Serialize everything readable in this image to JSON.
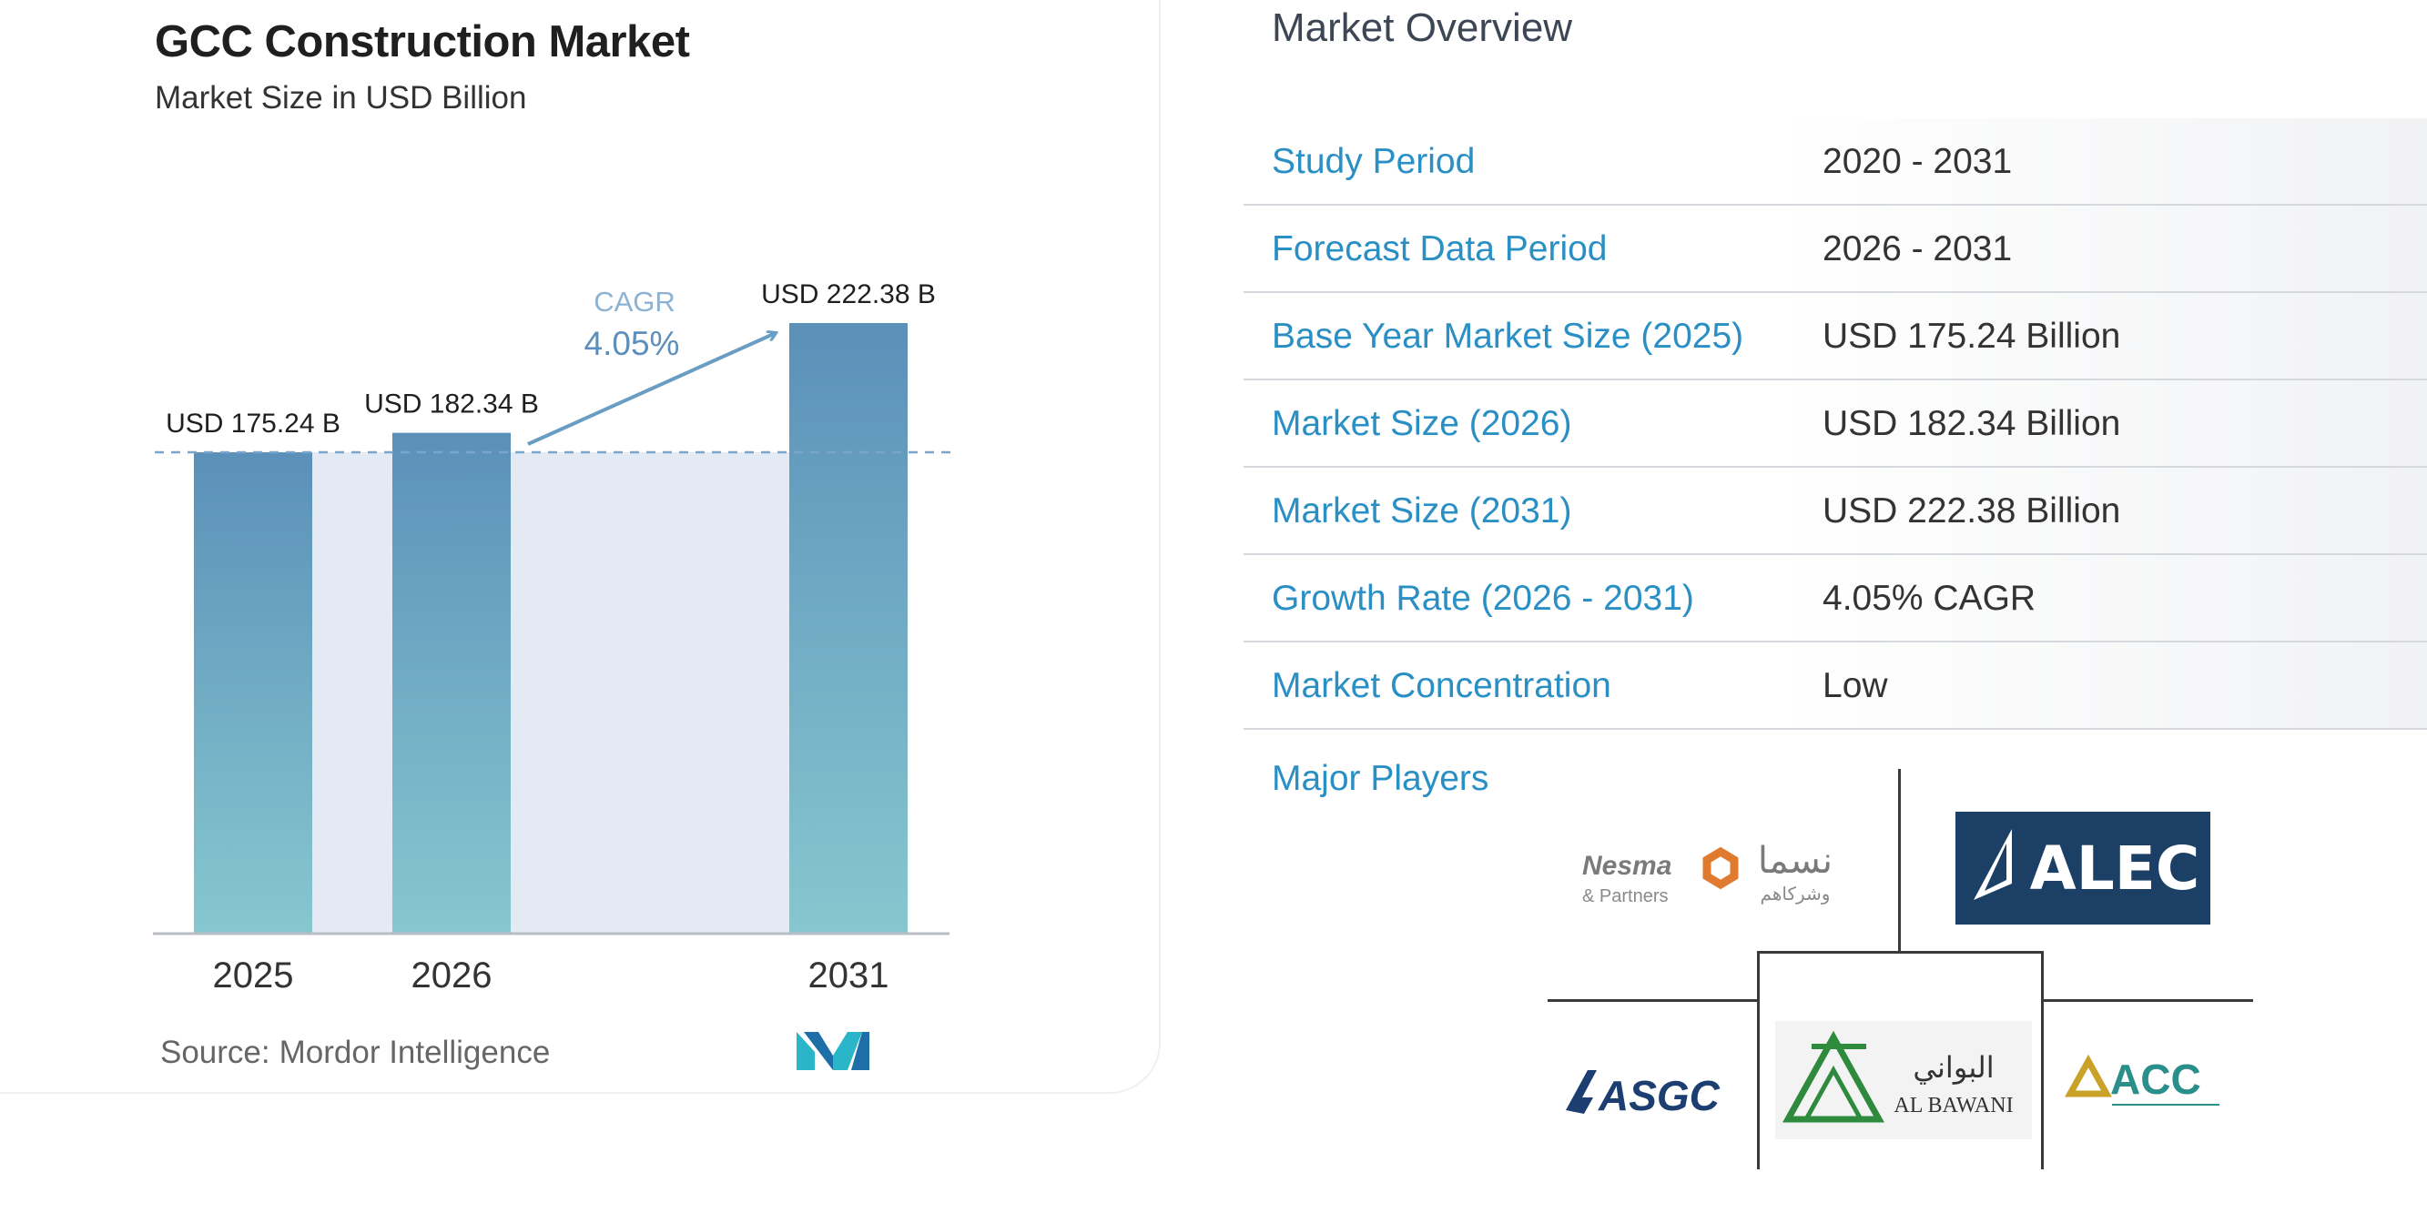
{
  "chart_data": {
    "type": "bar",
    "title": "GCC Construction Market",
    "subtitle": "Market Size in USD Billion",
    "categories": [
      "2025",
      "2026",
      "2031"
    ],
    "values": [
      175.24,
      182.34,
      222.38
    ],
    "data_labels": [
      "USD 175.24 B",
      "USD 182.34 B",
      "USD 222.38 B"
    ],
    "ylim": [
      0,
      222.38
    ],
    "grid": false,
    "legend": "none",
    "annotation": {
      "label": "CAGR",
      "value": "4.05%"
    },
    "colors": {
      "bar_top": "#5b90b9",
      "bar_bottom": "#86c7cf",
      "band": "#e3eaf3",
      "arrow": "#6a9dc4"
    }
  },
  "source": {
    "label": "Source:",
    "name": "Mordor Intelligence"
  },
  "overview": {
    "title": "Market Overview",
    "rows": [
      {
        "label": "Study Period",
        "value": "2020 - 2031"
      },
      {
        "label": "Forecast Data Period",
        "value": "2026 - 2031"
      },
      {
        "label": "Base Year Market Size (2025)",
        "value": "USD 175.24 Billion"
      },
      {
        "label": "Market Size (2026)",
        "value": "USD 182.34 Billion"
      },
      {
        "label": "Market Size (2031)",
        "value": "USD 222.38 Billion"
      },
      {
        "label": "Growth Rate (2026 - 2031)",
        "value": "4.05% CAGR"
      },
      {
        "label": "Market Concentration",
        "value": "Low"
      }
    ],
    "players_label": "Major Players"
  },
  "players": {
    "nesma": {
      "name": "Nesma",
      "sub": "& Partners",
      "arabic": "نسما",
      "arabic_sub": "وشركاهم"
    },
    "alec": {
      "name": "ALEC"
    },
    "asgc": {
      "name": "ASGC"
    },
    "albawani": {
      "name": "AL BAWANI",
      "arabic": "البواني"
    },
    "acc": {
      "name": "ACC"
    }
  },
  "accent_color": "#2a8fc4"
}
